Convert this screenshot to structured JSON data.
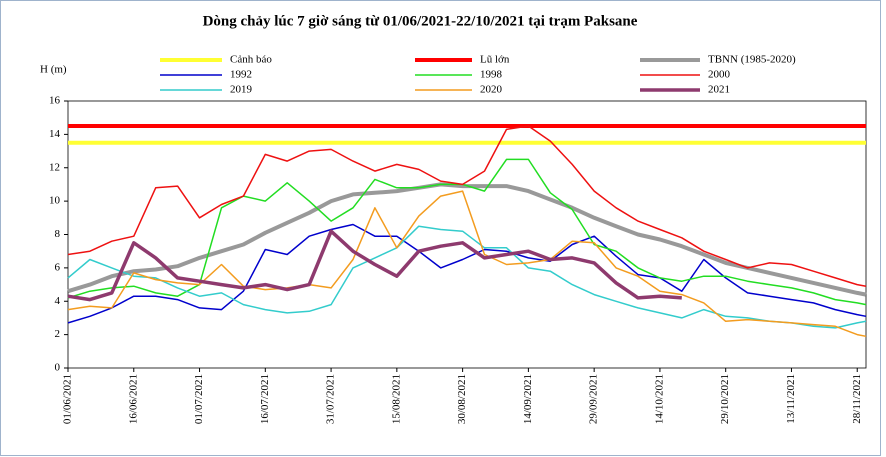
{
  "chart_data": {
    "type": "line",
    "title": "Dòng chảy lúc 7 giờ sáng từ 01/06/2021-22/10/2021 tại trạm Paksane",
    "y_label": "H (m)",
    "x": [
      "01/06/2021",
      "06/06/2021",
      "11/06/2021",
      "16/06/2021",
      "21/06/2021",
      "26/06/2021",
      "01/07/2021",
      "06/07/2021",
      "11/07/2021",
      "16/07/2021",
      "21/07/2021",
      "26/07/2021",
      "31/07/2021",
      "05/08/2021",
      "10/08/2021",
      "15/08/2021",
      "20/08/2021",
      "25/08/2021",
      "30/08/2021",
      "04/09/2021",
      "09/09/2021",
      "14/09/2021",
      "19/09/2021",
      "24/09/2021",
      "29/09/2021",
      "04/10/2021",
      "09/10/2021",
      "14/10/2021",
      "19/10/2021",
      "24/10/2021",
      "29/10/2021",
      "03/11/2021",
      "08/11/2021",
      "13/11/2021",
      "18/11/2021",
      "23/11/2021",
      "28/11/2021",
      "30/11/2021"
    ],
    "xlim": [
      "01/06/2021",
      "30/11/2021"
    ],
    "xticks": [
      "01/06/2021",
      "16/06/2021",
      "01/07/2021",
      "16/07/2021",
      "31/07/2021",
      "15/08/2021",
      "30/08/2021",
      "14/09/2021",
      "29/09/2021",
      "14/10/2021",
      "29/10/2021",
      "13/11/2021",
      "28/11/2021"
    ],
    "ylim": [
      0,
      16
    ],
    "yticks": [
      0,
      2,
      4,
      6,
      8,
      10,
      12,
      14,
      16
    ],
    "series": [
      {
        "name": "Cảnh báo",
        "color": "#ffff33",
        "width": 4,
        "values": [
          13.5,
          13.5,
          13.5,
          13.5,
          13.5,
          13.5,
          13.5,
          13.5,
          13.5,
          13.5,
          13.5,
          13.5,
          13.5,
          13.5,
          13.5,
          13.5,
          13.5,
          13.5,
          13.5,
          13.5,
          13.5,
          13.5,
          13.5,
          13.5,
          13.5,
          13.5,
          13.5,
          13.5,
          13.5,
          13.5,
          13.5,
          13.5,
          13.5,
          13.5,
          13.5,
          13.5,
          13.5,
          13.5
        ]
      },
      {
        "name": "Lũ lớn",
        "color": "#ff0000",
        "width": 4,
        "values": [
          14.5,
          14.5,
          14.5,
          14.5,
          14.5,
          14.5,
          14.5,
          14.5,
          14.5,
          14.5,
          14.5,
          14.5,
          14.5,
          14.5,
          14.5,
          14.5,
          14.5,
          14.5,
          14.5,
          14.5,
          14.5,
          14.5,
          14.5,
          14.5,
          14.5,
          14.5,
          14.5,
          14.5,
          14.5,
          14.5,
          14.5,
          14.5,
          14.5,
          14.5,
          14.5,
          14.5,
          14.5,
          14.5
        ]
      },
      {
        "name": "TBNN (1985-2020)",
        "color": "#999999",
        "width": 4,
        "values": [
          4.6,
          5.0,
          5.5,
          5.8,
          5.9,
          6.1,
          6.6,
          7.0,
          7.4,
          8.1,
          8.7,
          9.3,
          10.0,
          10.4,
          10.5,
          10.6,
          10.8,
          11.0,
          10.9,
          10.9,
          10.9,
          10.6,
          10.1,
          9.6,
          9.0,
          8.5,
          8.0,
          7.7,
          7.3,
          6.8,
          6.3,
          6.0,
          5.7,
          5.4,
          5.1,
          4.8,
          4.5,
          4.4
        ]
      },
      {
        "name": "1992",
        "color": "#0000cc",
        "width": 1.5,
        "values": [
          2.7,
          3.1,
          3.6,
          4.3,
          4.3,
          4.1,
          3.6,
          3.5,
          4.6,
          7.1,
          6.8,
          7.9,
          8.3,
          8.6,
          7.9,
          7.9,
          7.0,
          6.0,
          6.5,
          7.1,
          7.0,
          6.6,
          6.4,
          7.4,
          7.9,
          6.7,
          5.6,
          5.4,
          4.6,
          6.5,
          5.4,
          4.5,
          4.3,
          4.1,
          3.9,
          3.5,
          3.2,
          3.1
        ]
      },
      {
        "name": "1998",
        "color": "#22dd22",
        "width": 1.5,
        "values": [
          4.2,
          4.6,
          4.8,
          4.9,
          4.5,
          4.3,
          5.0,
          9.6,
          10.3,
          10.0,
          11.1,
          10.0,
          8.8,
          9.6,
          11.3,
          10.8,
          10.8,
          11.0,
          11.0,
          10.6,
          12.5,
          12.5,
          10.5,
          9.5,
          7.4,
          7.0,
          6.0,
          5.4,
          5.2,
          5.5,
          5.5,
          5.2,
          5.0,
          4.8,
          4.5,
          4.1,
          3.9,
          3.8
        ]
      },
      {
        "name": "2000",
        "color": "#ee1111",
        "width": 1.5,
        "values": [
          6.8,
          7.0,
          7.6,
          7.9,
          10.8,
          10.9,
          9.0,
          9.8,
          10.3,
          12.8,
          12.4,
          13.0,
          13.1,
          12.4,
          11.8,
          12.2,
          11.9,
          11.2,
          11.0,
          11.8,
          14.3,
          14.5,
          13.6,
          12.2,
          10.6,
          9.6,
          8.8,
          8.3,
          7.8,
          7.0,
          6.5,
          6.0,
          6.3,
          6.2,
          5.8,
          5.4,
          5.0,
          4.9
        ]
      },
      {
        "name": "2019",
        "color": "#33cccc",
        "width": 1.5,
        "values": [
          5.4,
          6.5,
          6.0,
          5.5,
          5.4,
          4.8,
          4.3,
          4.5,
          3.8,
          3.5,
          3.3,
          3.4,
          3.8,
          6.0,
          6.6,
          7.2,
          8.5,
          8.3,
          8.2,
          7.2,
          7.2,
          6.0,
          5.8,
          5.0,
          4.4,
          4.0,
          3.6,
          3.3,
          3.0,
          3.5,
          3.1,
          3.0,
          2.8,
          2.7,
          2.5,
          2.4,
          2.7,
          2.8
        ]
      },
      {
        "name": "2020",
        "color": "#f39c1f",
        "width": 1.5,
        "values": [
          3.5,
          3.7,
          3.6,
          5.7,
          5.3,
          5.1,
          5.0,
          6.2,
          4.9,
          4.7,
          4.8,
          5.0,
          4.8,
          6.5,
          9.6,
          7.2,
          9.1,
          10.3,
          10.6,
          6.8,
          6.2,
          6.3,
          6.5,
          7.6,
          7.5,
          6.0,
          5.5,
          4.6,
          4.4,
          3.9,
          2.8,
          2.9,
          2.8,
          2.7,
          2.6,
          2.5,
          2.0,
          1.9
        ]
      },
      {
        "name": "2021",
        "color": "#8e3a6e",
        "width": 3.5,
        "values": [
          4.3,
          4.1,
          4.5,
          7.5,
          6.6,
          5.4,
          5.2,
          5.0,
          4.8,
          5.0,
          4.7,
          5.0,
          8.2,
          7.0,
          6.2,
          5.5,
          7.0,
          7.3,
          7.5,
          6.6,
          6.8,
          7.0,
          6.5,
          6.6,
          6.3,
          5.1,
          4.2,
          4.3,
          4.2,
          null,
          null,
          null,
          null,
          null,
          null,
          null,
          null,
          null
        ]
      }
    ]
  }
}
